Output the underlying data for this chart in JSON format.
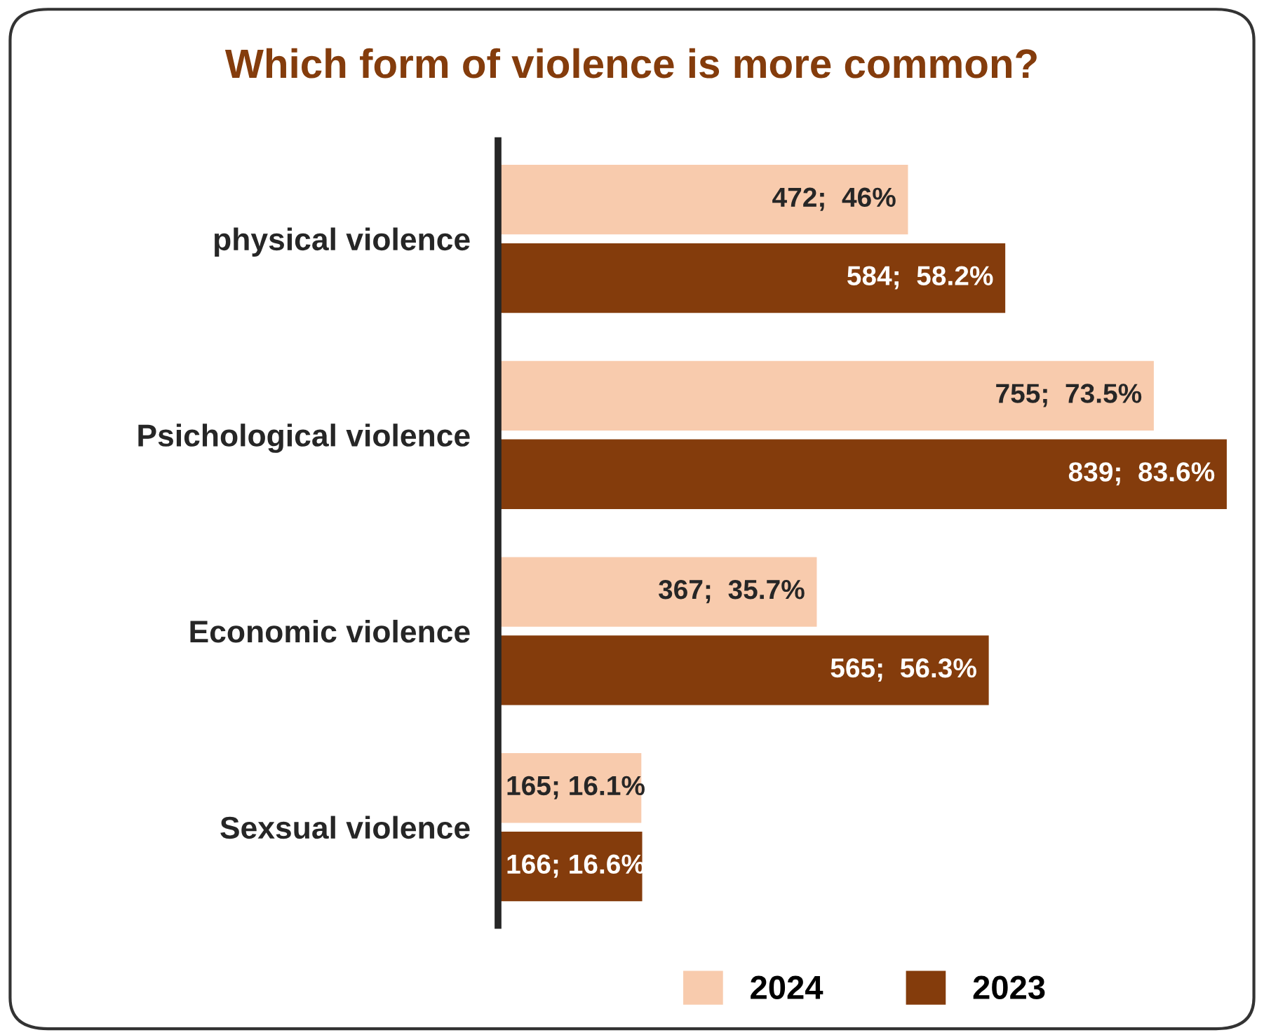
{
  "chart_data": {
    "type": "bar",
    "orientation": "horizontal",
    "title": "Which form of violence is more common?",
    "categories": [
      "physical violence",
      "Psichological violence",
      "Economic violence",
      "Sexsual violence"
    ],
    "series": [
      {
        "name": "2024",
        "color": "#f8cbad",
        "values": [
          472,
          755,
          367,
          165
        ],
        "value_labels": [
          "472;  46%",
          "755;  73.5%",
          "367;  35.7%",
          "165; 16.1%"
        ]
      },
      {
        "name": "2023",
        "color": "#843c0c",
        "values": [
          584,
          839,
          565,
          166
        ],
        "value_labels": [
          "584;  58.2%",
          "839;  83.6%",
          "565;  56.3%",
          "166; 16.6%"
        ]
      }
    ],
    "legend": "bottom"
  }
}
